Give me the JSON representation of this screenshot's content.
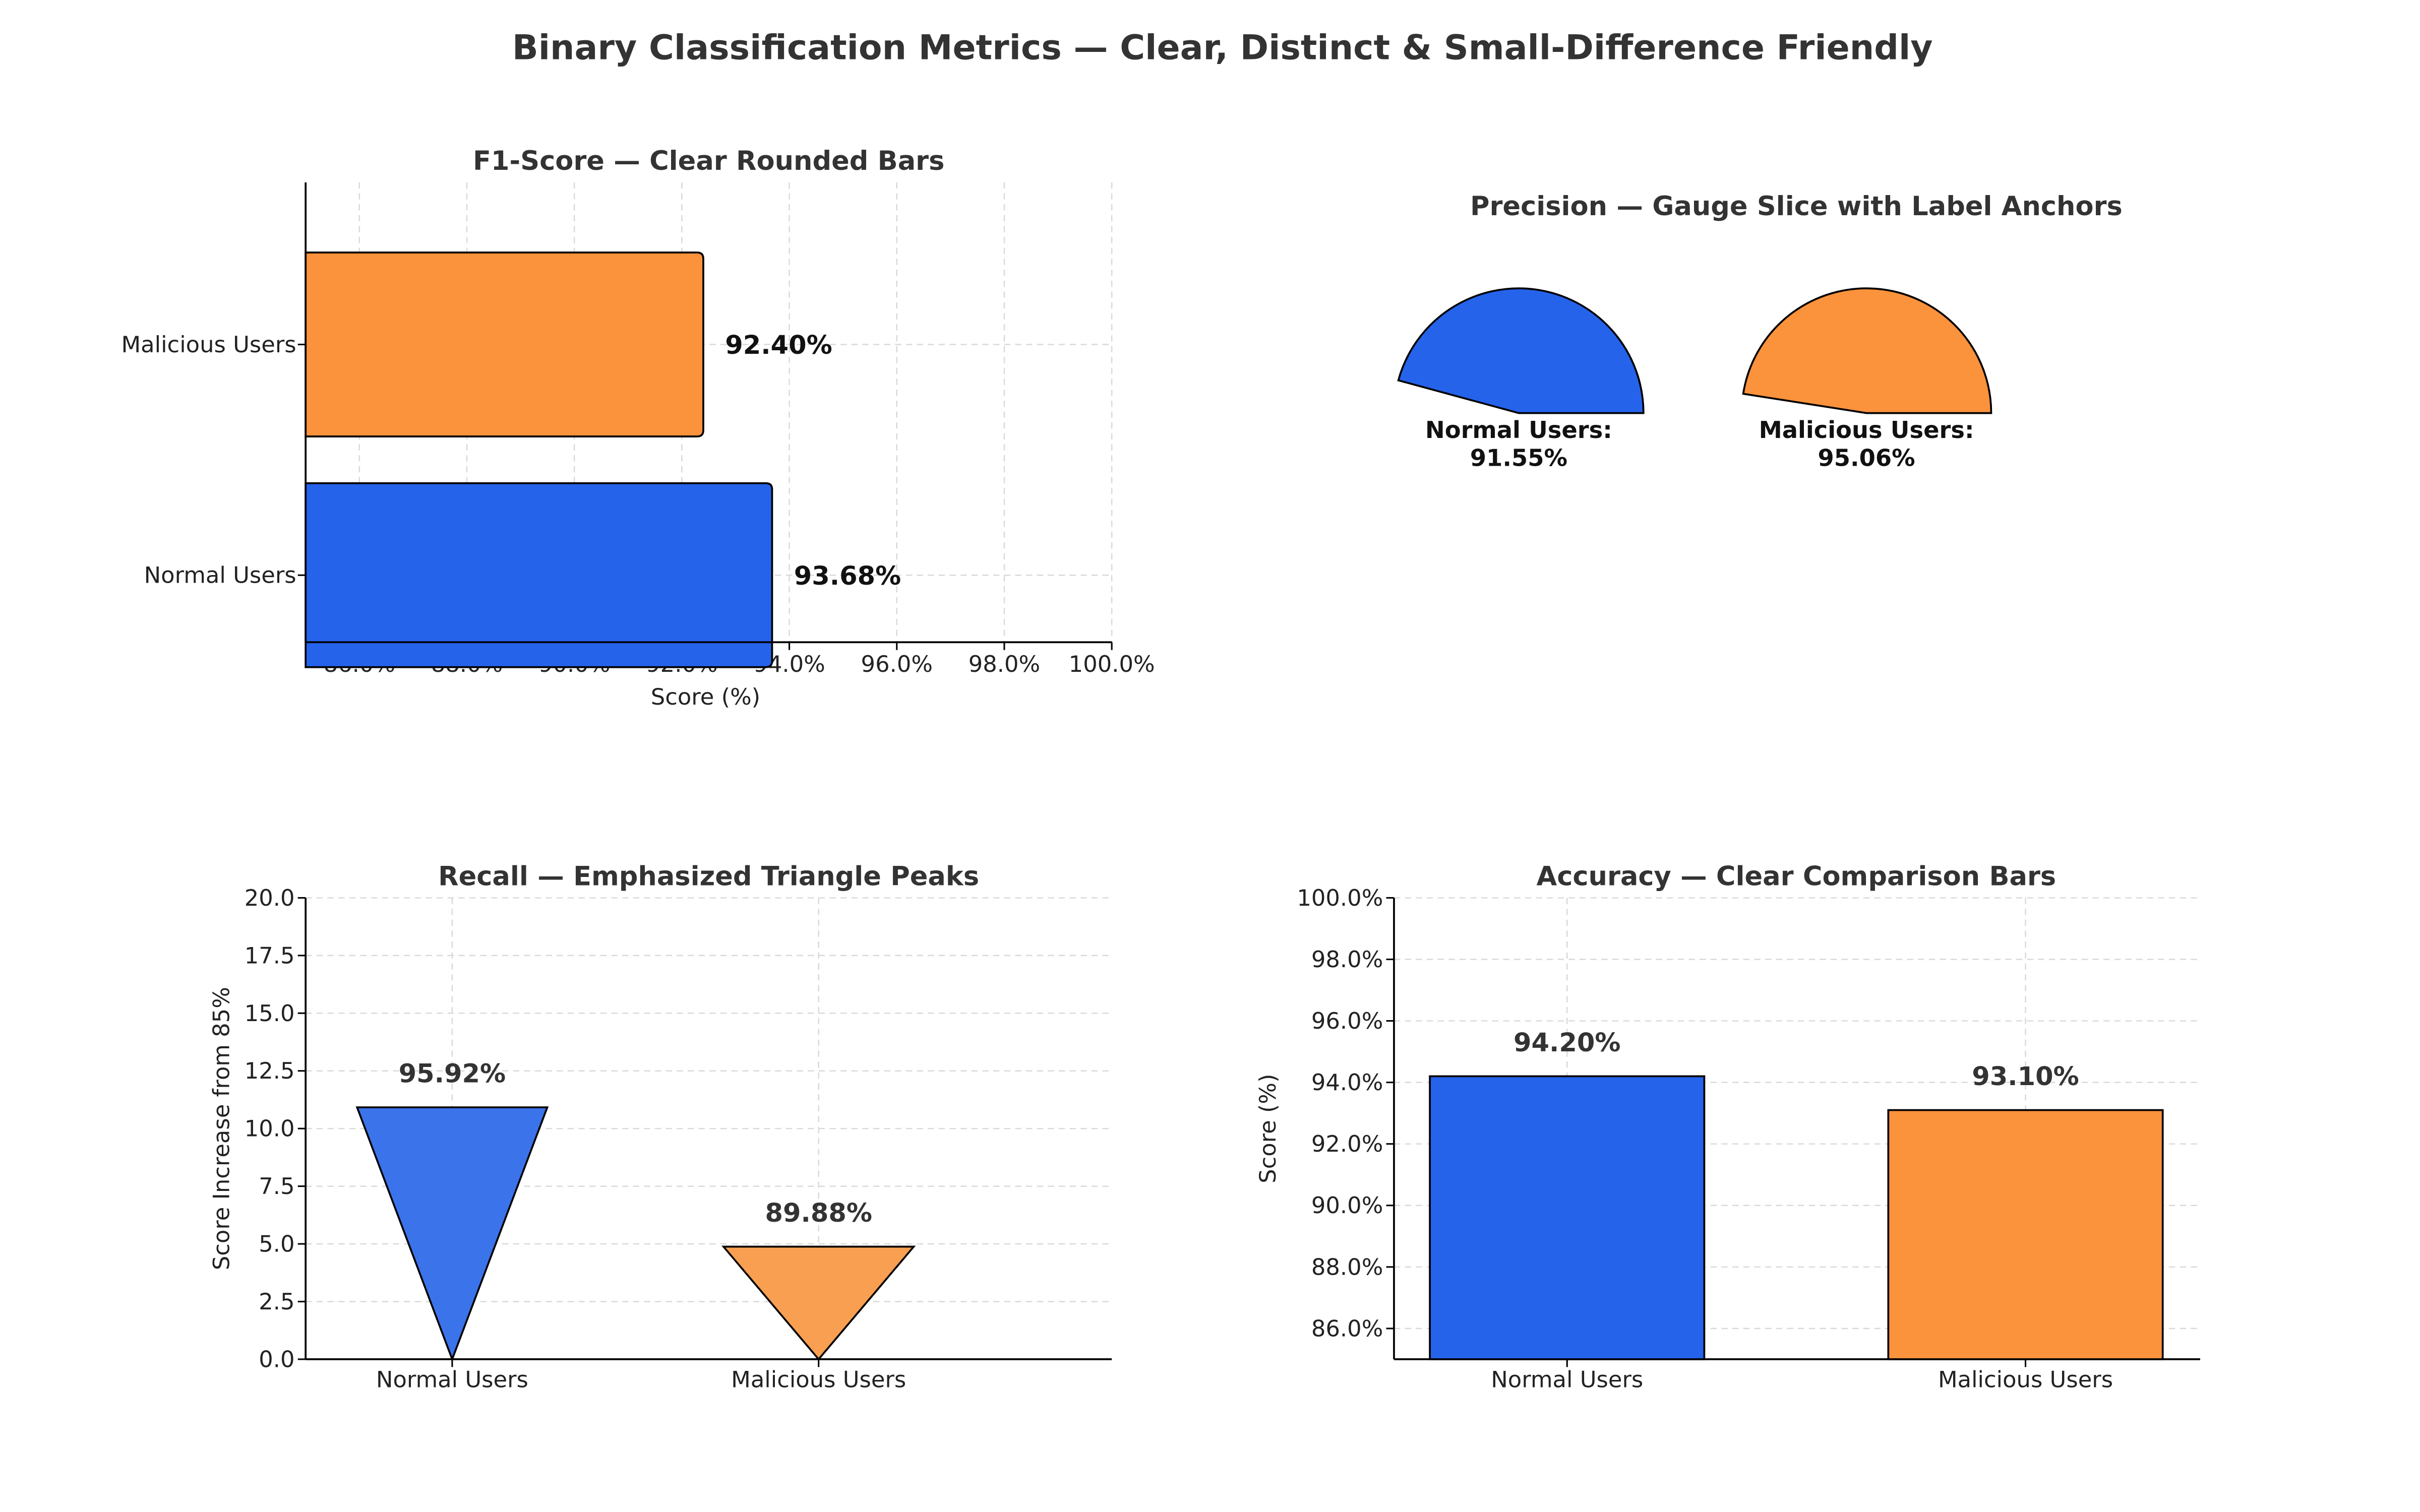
{
  "suptitle": "Binary Classification Metrics — Clear, Distinct & Small-Difference Friendly",
  "colors": {
    "normal": "#2563eb",
    "malicious": "#fb923c",
    "normal_recall": "#3b73eb",
    "malicious_recall": "#f99f52",
    "text": "#333333",
    "grid": "#d9d9d9",
    "edge": "#000000"
  },
  "chart_data": [
    {
      "type": "bar",
      "orientation": "horizontal",
      "title": "F1-Score — Clear Rounded Bars",
      "xlabel": "Score (%)",
      "ylabel": "",
      "categories": [
        "Normal Users",
        "Malicious Users"
      ],
      "values": [
        93.68,
        92.4
      ],
      "data_labels": [
        "93.68%",
        "92.40%"
      ],
      "xlim": [
        85,
        100
      ],
      "xticks": [
        86,
        88,
        90,
        92,
        94,
        96,
        98,
        100
      ],
      "xtick_labels": [
        "86.0%",
        "88.0%",
        "90.0%",
        "92.0%",
        "94.0%",
        "96.0%",
        "98.0%",
        "100.0%"
      ],
      "grid": true
    },
    {
      "type": "pie",
      "style": "gauge",
      "title": "Precision — Gauge Slice with Label Anchors",
      "categories": [
        "Normal Users",
        "Malicious Users"
      ],
      "values": [
        91.55,
        95.06
      ],
      "data_labels": [
        "Normal Users:\n91.55%",
        "Malicious Users:\n95.06%"
      ],
      "label_lines": [
        [
          "Normal Users:",
          "91.55%"
        ],
        [
          "Malicious Users:",
          "95.06%"
        ]
      ]
    },
    {
      "type": "bar",
      "style": "inverted-triangle",
      "title": "Recall — Emphasized Triangle Peaks",
      "xlabel": "",
      "ylabel": "Score Increase from 85%",
      "categories": [
        "Normal Users",
        "Malicious Users"
      ],
      "values": [
        10.92,
        4.88
      ],
      "data_labels": [
        "95.92%",
        "89.88%"
      ],
      "ylim": [
        0,
        20
      ],
      "yticks": [
        0,
        2.5,
        5,
        7.5,
        10,
        12.5,
        15,
        17.5,
        20
      ],
      "ytick_labels": [
        "0.0",
        "2.5",
        "5.0",
        "7.5",
        "10.0",
        "12.5",
        "15.0",
        "17.5",
        "20.0"
      ],
      "grid": true
    },
    {
      "type": "bar",
      "orientation": "vertical",
      "title": "Accuracy — Clear Comparison Bars",
      "xlabel": "",
      "ylabel": "Score (%)",
      "categories": [
        "Normal Users",
        "Malicious Users"
      ],
      "values": [
        94.2,
        93.1
      ],
      "data_labels": [
        "94.20%",
        "93.10%"
      ],
      "ylim": [
        85,
        100
      ],
      "yticks": [
        86,
        88,
        90,
        92,
        94,
        96,
        98,
        100
      ],
      "ytick_labels": [
        "86.0%",
        "88.0%",
        "90.0%",
        "92.0%",
        "94.0%",
        "96.0%",
        "98.0%",
        "100.0%"
      ],
      "grid": true
    }
  ]
}
